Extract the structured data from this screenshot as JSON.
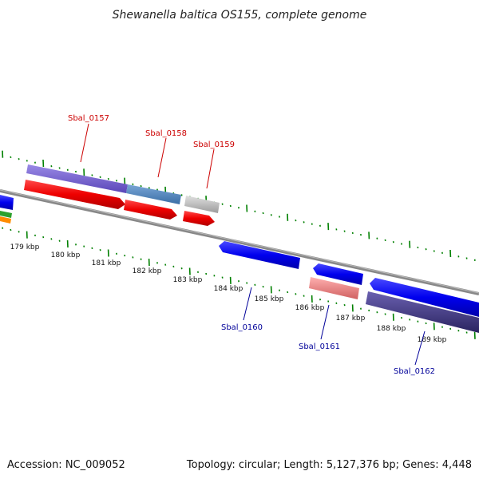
{
  "title": "Shewanella baltica OS155, complete genome",
  "footer": {
    "accession": "Accession: NC_009052",
    "summary": "Topology: circular; Length: 5,127,376 bp; Genes: 4,448"
  },
  "axis": {
    "tick_labels": [
      "179 kbp",
      "180 kbp",
      "181 kbp",
      "182 kbp",
      "183 kbp",
      "184 kbp",
      "185 kbp",
      "186 kbp",
      "187 kbp",
      "188 kbp",
      "189 kbp"
    ]
  },
  "genes": {
    "forward": [
      "Sbal_0157",
      "Sbal_0158",
      "Sbal_0159"
    ],
    "reverse": [
      "Sbal_0160",
      "Sbal_0161",
      "Sbal_0162"
    ]
  },
  "colors": {
    "forward_label": "#cc0000",
    "reverse_label": "#000099",
    "backbone": "#888888",
    "tick": "#008000"
  }
}
